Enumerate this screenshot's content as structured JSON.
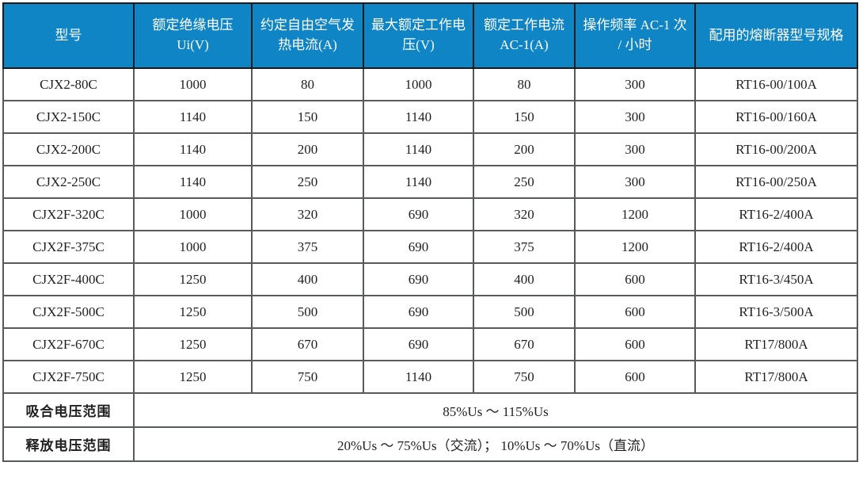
{
  "colors": {
    "header_bg": "#0F85C5",
    "header_text": "#FFFFFF",
    "body_text": "#1F1F1F",
    "grid_line": "#58595B",
    "outer_border": "#000000"
  },
  "table": {
    "columns": [
      "型号",
      "额定绝缘电压 Ui(V)",
      "约定自由空气发热电流(A)",
      "最大额定工作电压(V)",
      "额定工作电流 AC-1(A)",
      "操作频率 AC-1 次 / 小时",
      "配用的熔断器型号规格"
    ],
    "rows": [
      [
        "CJX2-80C",
        "1000",
        "80",
        "1000",
        "80",
        "300",
        "RT16-00/100A"
      ],
      [
        "CJX2-150C",
        "1140",
        "150",
        "1140",
        "150",
        "300",
        "RT16-00/160A"
      ],
      [
        "CJX2-200C",
        "1140",
        "200",
        "1140",
        "200",
        "300",
        "RT16-00/200A"
      ],
      [
        "CJX2-250C",
        "1140",
        "250",
        "1140",
        "250",
        "300",
        "RT16-00/250A"
      ],
      [
        "CJX2F-320C",
        "1000",
        "320",
        "690",
        "320",
        "1200",
        "RT16-2/400A"
      ],
      [
        "CJX2F-375C",
        "1000",
        "375",
        "690",
        "375",
        "1200",
        "RT16-2/400A"
      ],
      [
        "CJX2F-400C",
        "1250",
        "400",
        "690",
        "400",
        "600",
        "RT16-3/450A"
      ],
      [
        "CJX2F-500C",
        "1250",
        "500",
        "690",
        "500",
        "600",
        "RT16-3/500A"
      ],
      [
        "CJX2F-670C",
        "1250",
        "670",
        "690",
        "670",
        "600",
        "RT17/800A"
      ],
      [
        "CJX2F-750C",
        "1250",
        "750",
        "1140",
        "750",
        "600",
        "RT17/800A"
      ]
    ],
    "footer_rows": [
      {
        "label": "吸合电压范围",
        "value": "85%Us ～ 115%Us"
      },
      {
        "label": "释放电压范围",
        "value": "20%Us ～ 75%Us（交流）； 10%Us ～ 70%Us（直流）"
      }
    ]
  }
}
